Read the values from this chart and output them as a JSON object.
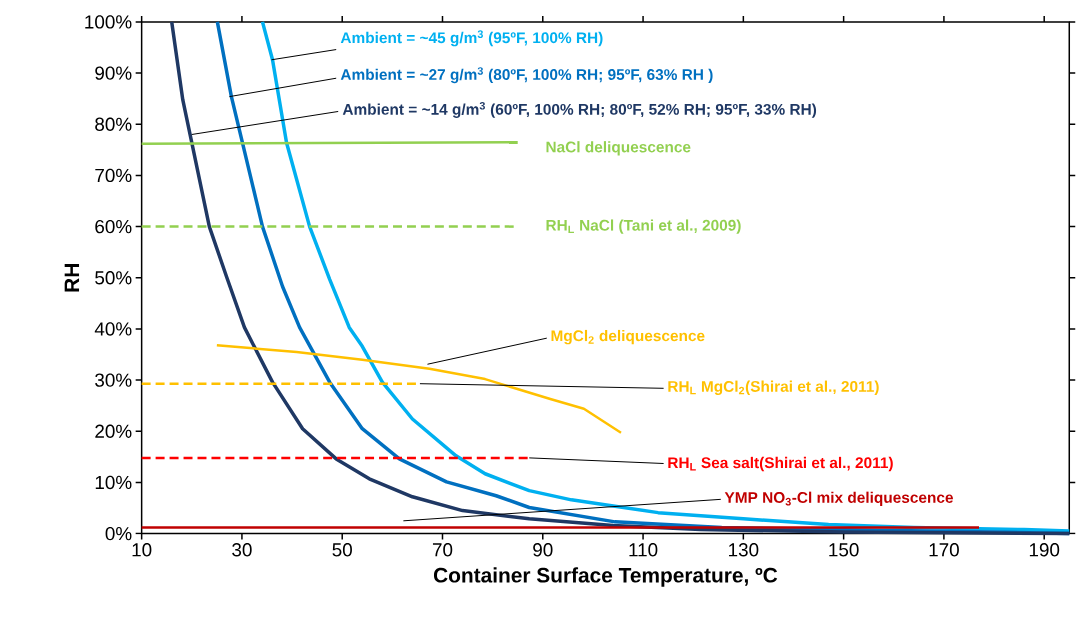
{
  "chart_data": {
    "type": "line",
    "xlabel": "Container Surface Temperature, ºC",
    "ylabel": "RH",
    "xlim": [
      10,
      195
    ],
    "xticks": [
      10,
      30,
      50,
      70,
      90,
      110,
      130,
      150,
      170,
      190
    ],
    "ylim": [
      0,
      100
    ],
    "yticks": [
      {
        "value": 0,
        "label": "0%"
      },
      {
        "value": 10,
        "label": "10%"
      },
      {
        "value": 20,
        "label": "20%"
      },
      {
        "value": 30,
        "label": "30%"
      },
      {
        "value": 40,
        "label": "40%"
      },
      {
        "value": 50,
        "label": "50%"
      },
      {
        "value": 60,
        "label": "60%"
      },
      {
        "value": 70,
        "label": "70%"
      },
      {
        "value": 80,
        "label": "80%"
      },
      {
        "value": 90,
        "label": "90%"
      },
      {
        "value": 100,
        "label": "100%"
      }
    ],
    "grid": false,
    "legend": false,
    "series": [
      {
        "name": "Ambient = ~45 g/m$^{3}$ (95ºF, 100% RH)",
        "color": "#00b0f0",
        "x": [
          34.1,
          36.1,
          38.9,
          43.5,
          47.5,
          51.4,
          54,
          58,
          64,
          72.7,
          78.5,
          87.3,
          95.7,
          113,
          130,
          147,
          164,
          186,
          195
        ],
        "values": [
          100,
          92.6,
          76.4,
          60,
          49.7,
          40.3,
          36.6,
          29.6,
          22.4,
          15.2,
          11.7,
          8.4,
          6.6,
          4.1,
          2.9,
          1.8,
          1.2,
          0.8,
          0.5
        ]
      },
      {
        "name": "Ambient = ~27 g/m$^{3}$ (80ºF, 100% RH; 95ºF, 63% RH )",
        "color": "#0070c0",
        "x": [
          25.1,
          27.9,
          30.1,
          34.1,
          38.1,
          41.5,
          47.5,
          54,
          61.4,
          70.8,
          80.7,
          87.3,
          104.4,
          125.7,
          147,
          180,
          195
        ],
        "values": [
          100,
          85.4,
          76.4,
          60,
          48.3,
          40.3,
          29.6,
          20.5,
          14.6,
          10.1,
          7.4,
          5.1,
          2.3,
          1.2,
          0.8,
          0.3,
          0
        ]
      },
      {
        "name": "Ambient = ~14 g/m$^{3}$ (60ºF, 100% RH; 80ºF, 52% RH; 95ºF, 33% RH)",
        "color": "#1f3864",
        "x": [
          16,
          18.2,
          20,
          23.5,
          26.9,
          30.5,
          36.1,
          42.1,
          48.8,
          55.4,
          64,
          74,
          87.3,
          104,
          121.5,
          150,
          195
        ],
        "values": [
          100,
          84.8,
          76.4,
          60,
          50.3,
          40.3,
          29.6,
          20.5,
          14.6,
          10.7,
          7.2,
          4.5,
          2.9,
          1.6,
          0.8,
          0.3,
          0
        ]
      },
      {
        "name": "NaCl deliquescence",
        "color": "#92d050",
        "line_style": "solid",
        "x": [
          10,
          85
        ],
        "values": [
          76.2,
          76.5
        ]
      },
      {
        "name": "RH$_{L}$ NaCl (Tani et al., 2009)",
        "color": "#92d050",
        "line_style": "dashed",
        "x": [
          10,
          85
        ],
        "values": [
          60,
          60
        ]
      },
      {
        "name": "MgCl$_{2}$  deliquescence",
        "color": "#ffc000",
        "line_style": "solid",
        "x": [
          25,
          40.9,
          54,
          67.4,
          78.5,
          91.5,
          98.2,
          105.6
        ],
        "values": [
          36.8,
          35.5,
          34,
          32.2,
          30.2,
          26.3,
          24.4,
          19.7
        ]
      },
      {
        "name": "RH$_{L}$ MgCl$_{2}$(Shirai et al., 2011)",
        "color": "#ffc000",
        "line_style": "dashed",
        "x": [
          10,
          65
        ],
        "values": [
          29.3,
          29.3
        ]
      },
      {
        "name": "RH$_{L}$ Sea salt(Shirai et al., 2011)",
        "color": "#ff0000",
        "line_style": "dashed",
        "x": [
          10,
          87
        ],
        "values": [
          14.8,
          14.8
        ]
      },
      {
        "name": "YMP NO$_{3}$-Cl mix deliquescence",
        "color": "#c00000",
        "line_style": "solid",
        "x": [
          10,
          177
        ],
        "values": [
          1.2,
          1.2
        ]
      }
    ]
  }
}
